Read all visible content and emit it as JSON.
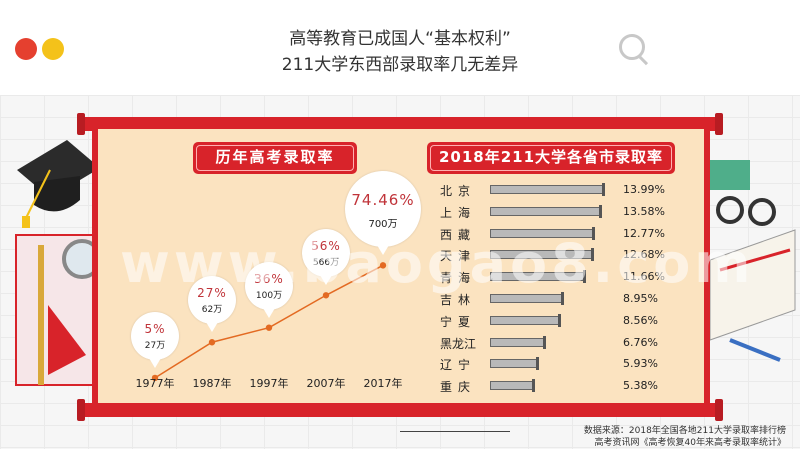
{
  "header": {
    "title_line1": "高等教育已成国人“基本权利”",
    "title_line2": "211大学东西部录取率几无差异"
  },
  "left_panel": {
    "heading": "历年高考录取率"
  },
  "right_panel": {
    "heading": "2018年211大学各省市录取率"
  },
  "watermark": "www.baogao8.com",
  "source": {
    "line1": "数据来源：2018年全国各地211大学录取率排行榜",
    "line2": "高考资讯网《高考恢复40年来高考录取率统计》"
  },
  "colors": {
    "accent_red": "#d8232a",
    "panel_bg": "#fbe3c0",
    "line": "#e36a22",
    "dot_red": "#e5402f",
    "dot_yellow": "#f4c21a"
  },
  "chart_data": [
    {
      "type": "line",
      "title": "历年高考录取率",
      "categories": [
        "1977年",
        "1987年",
        "1997年",
        "2007年",
        "2017年"
      ],
      "series": [
        {
          "values": [
            5,
            27,
            36,
            56,
            74.46
          ]
        }
      ],
      "labels": [
        {
          "pct": "5%",
          "count": "27万"
        },
        {
          "pct": "27%",
          "count": "62万"
        },
        {
          "pct": "36%",
          "count": "100万"
        },
        {
          "pct": "56%",
          "count": "566万"
        },
        {
          "pct": "74.46%",
          "count": "700万"
        }
      ],
      "ylim": [
        0,
        100
      ],
      "grid": false
    },
    {
      "type": "bar",
      "orientation": "horizontal",
      "title": "2018年211大学各省市录取率",
      "categories": [
        "北京",
        "上海",
        "西藏",
        "天津",
        "青海",
        "吉林",
        "宁夏",
        "黑龙江",
        "辽宁",
        "重庆"
      ],
      "values": [
        13.99,
        13.58,
        12.77,
        12.68,
        11.66,
        8.95,
        8.56,
        6.76,
        5.93,
        5.38
      ],
      "value_labels": [
        "13.99%",
        "13.58%",
        "12.77%",
        "12.68%",
        "11.66%",
        "8.95%",
        "8.56%",
        "6.76%",
        "5.93%",
        "5.38%"
      ],
      "xlim": [
        0,
        14.5
      ]
    }
  ]
}
